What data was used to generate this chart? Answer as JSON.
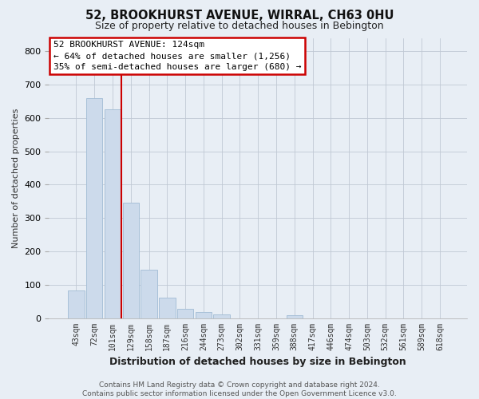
{
  "title": "52, BROOKHURST AVENUE, WIRRAL, CH63 0HU",
  "subtitle": "Size of property relative to detached houses in Bebington",
  "bar_labels": [
    "43sqm",
    "72sqm",
    "101sqm",
    "129sqm",
    "158sqm",
    "187sqm",
    "216sqm",
    "244sqm",
    "273sqm",
    "302sqm",
    "331sqm",
    "359sqm",
    "388sqm",
    "417sqm",
    "446sqm",
    "474sqm",
    "503sqm",
    "532sqm",
    "561sqm",
    "589sqm",
    "618sqm"
  ],
  "bar_values": [
    82,
    660,
    625,
    345,
    145,
    60,
    27,
    18,
    10,
    0,
    0,
    0,
    8,
    0,
    0,
    0,
    0,
    0,
    0,
    0,
    0
  ],
  "bar_color": "#ccdaeb",
  "bar_edge_color": "#a8c0d8",
  "vline_color": "#cc0000",
  "vline_pos": 2.5,
  "ylabel": "Number of detached properties",
  "xlabel": "Distribution of detached houses by size in Bebington",
  "ylim": [
    0,
    840
  ],
  "yticks": [
    0,
    100,
    200,
    300,
    400,
    500,
    600,
    700,
    800
  ],
  "annotation_line1": "52 BROOKHURST AVENUE: 124sqm",
  "annotation_line2": "← 64% of detached houses are smaller (1,256)",
  "annotation_line3": "35% of semi-detached houses are larger (680) →",
  "annotation_box_color": "#cc0000",
  "footer_line1": "Contains HM Land Registry data © Crown copyright and database right 2024.",
  "footer_line2": "Contains public sector information licensed under the Open Government Licence v3.0.",
  "bg_color": "#e8eef5",
  "plot_bg_color": "#e8eef5"
}
